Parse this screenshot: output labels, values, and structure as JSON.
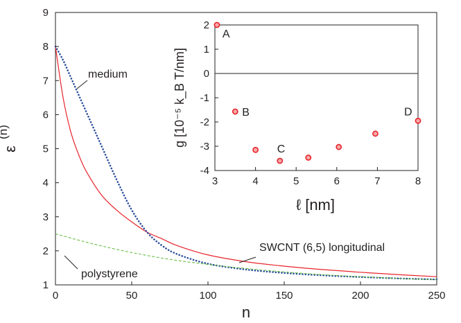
{
  "chart_data": [
    {
      "type": "line",
      "xlabel": "n",
      "ylabel": "ε",
      "ylabel_superscript": "(n)",
      "xlim": [
        0,
        250
      ],
      "ylim": [
        1,
        9
      ],
      "x_ticks": [
        0,
        50,
        100,
        150,
        200,
        250
      ],
      "y_ticks": [
        1,
        2,
        3,
        4,
        5,
        6,
        7,
        8,
        9
      ],
      "grid": false,
      "series": [
        {
          "name": "SWCNT (6,5) longitudinal",
          "color": "#e8232a",
          "style": "solid",
          "x": [
            0,
            5,
            10,
            15,
            20,
            30,
            40,
            50,
            60,
            70,
            80,
            100,
            125,
            150,
            175,
            200,
            225,
            250
          ],
          "y": [
            8.0,
            6.5,
            5.5,
            4.85,
            4.35,
            3.65,
            3.2,
            2.85,
            2.55,
            2.35,
            2.15,
            1.88,
            1.68,
            1.55,
            1.45,
            1.37,
            1.3,
            1.24
          ]
        },
        {
          "name": "medium",
          "color": "#2a4e9b",
          "style": "dotted",
          "x": [
            0,
            5,
            10,
            15,
            20,
            25,
            30,
            40,
            50,
            60,
            70,
            80,
            100,
            125,
            150,
            175,
            200,
            225,
            250
          ],
          "y": [
            8.0,
            7.6,
            7.1,
            6.6,
            6.1,
            5.6,
            5.1,
            4.1,
            3.2,
            2.55,
            2.15,
            1.9,
            1.62,
            1.45,
            1.35,
            1.28,
            1.23,
            1.19,
            1.16
          ]
        },
        {
          "name": "polystyrene",
          "color": "#5cb833",
          "style": "dashed",
          "x": [
            0,
            25,
            50,
            75,
            100,
            125,
            150,
            175,
            200,
            225,
            250
          ],
          "y": [
            2.5,
            2.2,
            1.95,
            1.75,
            1.6,
            1.48,
            1.38,
            1.3,
            1.24,
            1.19,
            1.15
          ]
        }
      ],
      "annotations": [
        {
          "text": "medium",
          "series": "medium"
        },
        {
          "text": "SWCNT (6,5) longitudinal",
          "series": "SWCNT (6,5) longitudinal"
        },
        {
          "text": "polystyrene",
          "series": "polystyrene"
        }
      ]
    },
    {
      "type": "scatter",
      "xlabel": "ℓ [nm]",
      "ylabel": "g [10⁻⁵ k_B T/nm]",
      "xlim": [
        3,
        8
      ],
      "ylim": [
        -4,
        2
      ],
      "x_ticks": [
        3,
        4,
        5,
        6,
        7,
        8
      ],
      "y_ticks": [
        2,
        1,
        0,
        -1,
        -2,
        -3,
        -4
      ],
      "zero_line": true,
      "marker_color": "#e8232a",
      "points": [
        {
          "x": 3.05,
          "y": 2.0,
          "label": "A"
        },
        {
          "x": 3.5,
          "y": -1.57,
          "label": "B"
        },
        {
          "x": 4.0,
          "y": -3.15,
          "label": ""
        },
        {
          "x": 4.6,
          "y": -3.6,
          "label": "C"
        },
        {
          "x": 5.3,
          "y": -3.47,
          "label": ""
        },
        {
          "x": 6.05,
          "y": -3.03,
          "label": ""
        },
        {
          "x": 6.95,
          "y": -2.48,
          "label": ""
        },
        {
          "x": 8.0,
          "y": -1.95,
          "label": "D"
        }
      ]
    }
  ]
}
